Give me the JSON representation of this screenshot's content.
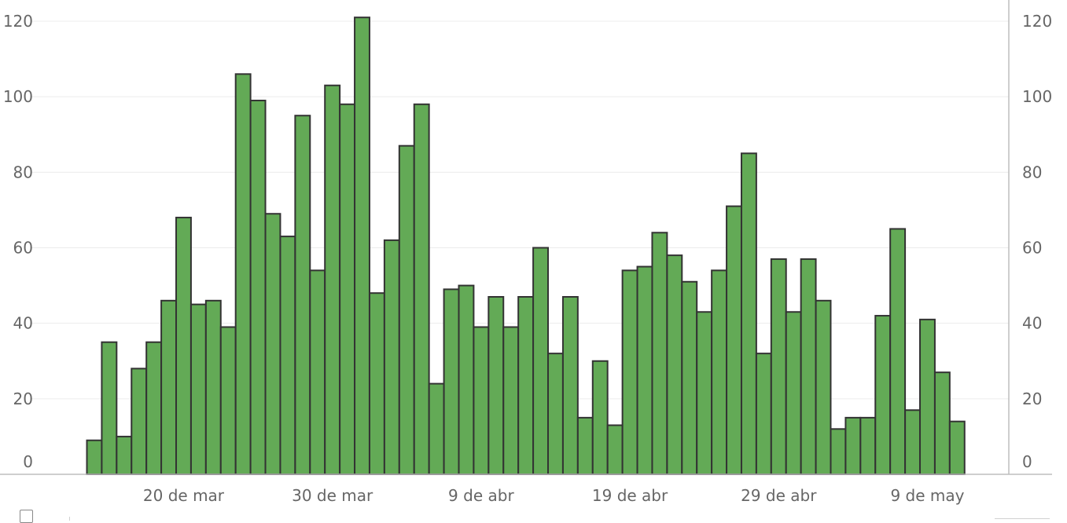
{
  "chart_data": {
    "type": "bar",
    "title": "",
    "xlabel": "",
    "ylabel": "",
    "ylim": [
      0,
      120
    ],
    "yticks": [
      0,
      20,
      40,
      60,
      80,
      100,
      120
    ],
    "grid": true,
    "legend": "none",
    "bar_color": "#63aa56",
    "bar_edge_color": "#333333",
    "x_tick_labels": [
      "20 de mar",
      "30 de mar",
      "9 de abr",
      "19 de abr",
      "29 de abr",
      "9 de may"
    ],
    "x_tick_positions": [
      6.5,
      16.5,
      26.5,
      36.5,
      46.5,
      56.5
    ],
    "values": [
      9,
      35,
      10,
      28,
      35,
      46,
      68,
      45,
      46,
      39,
      106,
      99,
      69,
      63,
      95,
      54,
      103,
      98,
      121,
      48,
      62,
      87,
      98,
      24,
      49,
      50,
      39,
      47,
      39,
      47,
      60,
      32,
      47,
      15,
      30,
      13,
      54,
      55,
      64,
      58,
      51,
      43,
      54,
      71,
      85,
      32,
      57,
      43,
      57,
      46,
      12,
      15,
      15,
      42,
      65,
      17,
      41,
      27,
      14
    ]
  }
}
